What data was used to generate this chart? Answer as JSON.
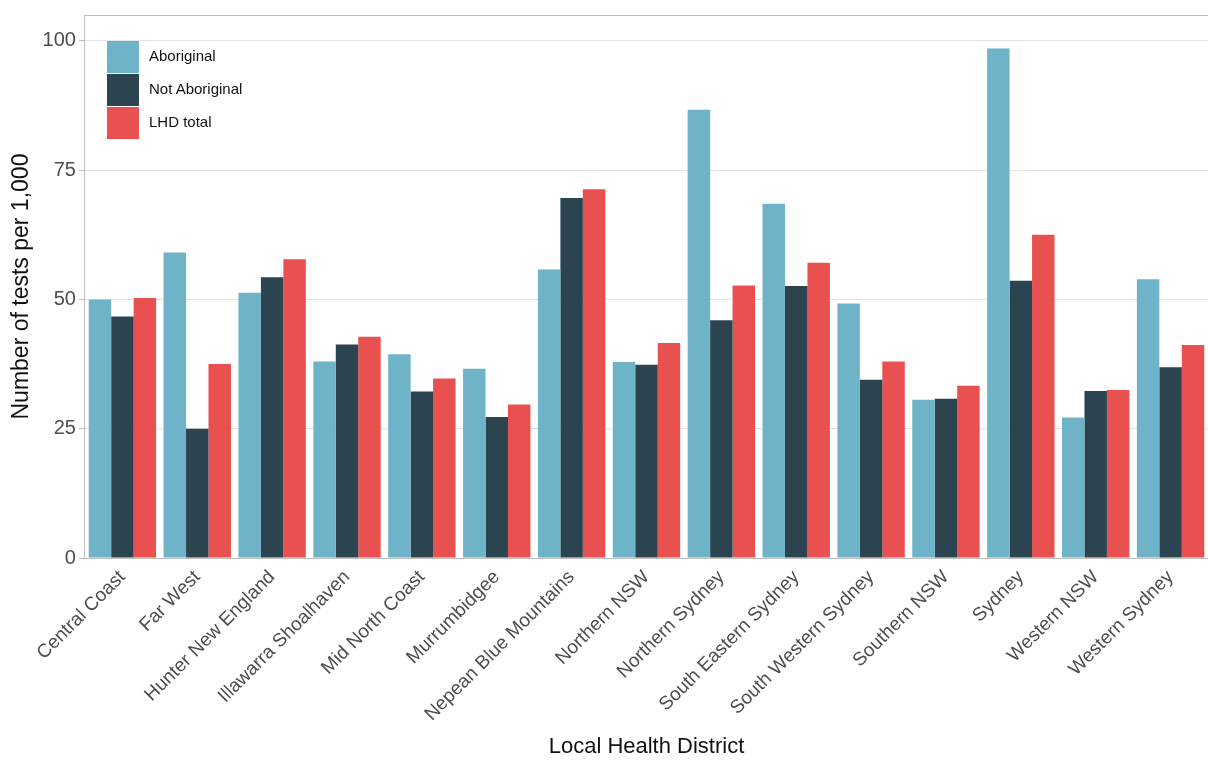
{
  "chart_data": {
    "type": "bar",
    "xlabel": "Local Health District",
    "ylabel": "Number of tests per 1,000",
    "categories": [
      "Central Coast",
      "Far West",
      "Hunter New England",
      "Illawarra Shoalhaven",
      "Mid North Coast",
      "Murrumbidgee",
      "Nepean Blue Mountains",
      "Northern NSW",
      "Northern Sydney",
      "South Eastern Sydney",
      "South Western Sydney",
      "Southern NSW",
      "Sydney",
      "Western NSW",
      "Western Sydney"
    ],
    "series": [
      {
        "name": "Aboriginal",
        "color": "#6fb3c8",
        "values": [
          50.0,
          59.1,
          51.3,
          38.0,
          39.4,
          36.6,
          55.8,
          37.9,
          86.7,
          68.5,
          49.2,
          30.6,
          98.5,
          27.2,
          53.9
        ]
      },
      {
        "name": "Not Aboriginal",
        "color": "#2c444f",
        "values": [
          46.7,
          25.0,
          54.3,
          41.3,
          32.2,
          27.3,
          69.6,
          37.4,
          46.0,
          52.6,
          34.5,
          30.8,
          53.6,
          32.3,
          36.9
        ]
      },
      {
        "name": "LHD total",
        "color": "#e95050",
        "values": [
          50.3,
          37.5,
          57.8,
          42.8,
          34.7,
          29.7,
          71.3,
          41.6,
          52.7,
          57.1,
          38.0,
          33.3,
          62.5,
          32.5,
          41.2
        ]
      }
    ],
    "ylim": [
      0,
      105
    ],
    "yticks": [
      0,
      25,
      50,
      75,
      100
    ],
    "grid": "y",
    "legend": "top left"
  }
}
